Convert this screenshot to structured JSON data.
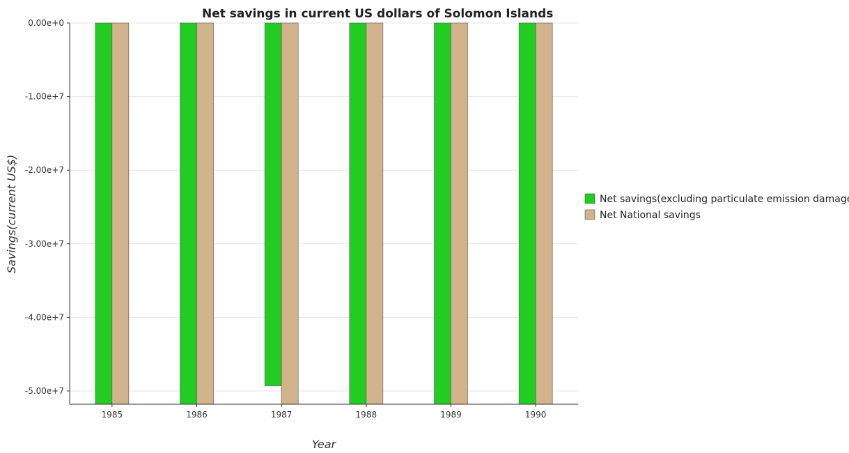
{
  "chart_data": {
    "type": "bar",
    "title": "Net savings in current US dollars of Solomon Islands",
    "xlabel": "Year",
    "ylabel": "Savings(current US$)",
    "categories": [
      "1985",
      "1986",
      "1987",
      "1988",
      "1989",
      "1990"
    ],
    "series": [
      {
        "name": "Net savings(excluding particulate emission damage)",
        "color": "#22cc22",
        "values": [
          -51800000,
          -51800000,
          -49300000,
          -51800000,
          -51800000,
          -51800000
        ]
      },
      {
        "name": "Net National savings",
        "color": "#d2b48c",
        "values": [
          -51800000,
          -51800000,
          -51800000,
          -51800000,
          -51800000,
          -51800000
        ]
      }
    ],
    "yticks": [
      0,
      -10000000,
      -20000000,
      -30000000,
      -40000000,
      -50000000
    ],
    "ytick_labels": [
      "0.00e+0",
      "-1.00e+7",
      "-2.00e+7",
      "-3.00e+7",
      "-4.00e+7",
      "-5.00e+7"
    ],
    "ylim": [
      0,
      -51800000
    ],
    "y_inverted": true,
    "grid": true,
    "legend_position": "right"
  }
}
